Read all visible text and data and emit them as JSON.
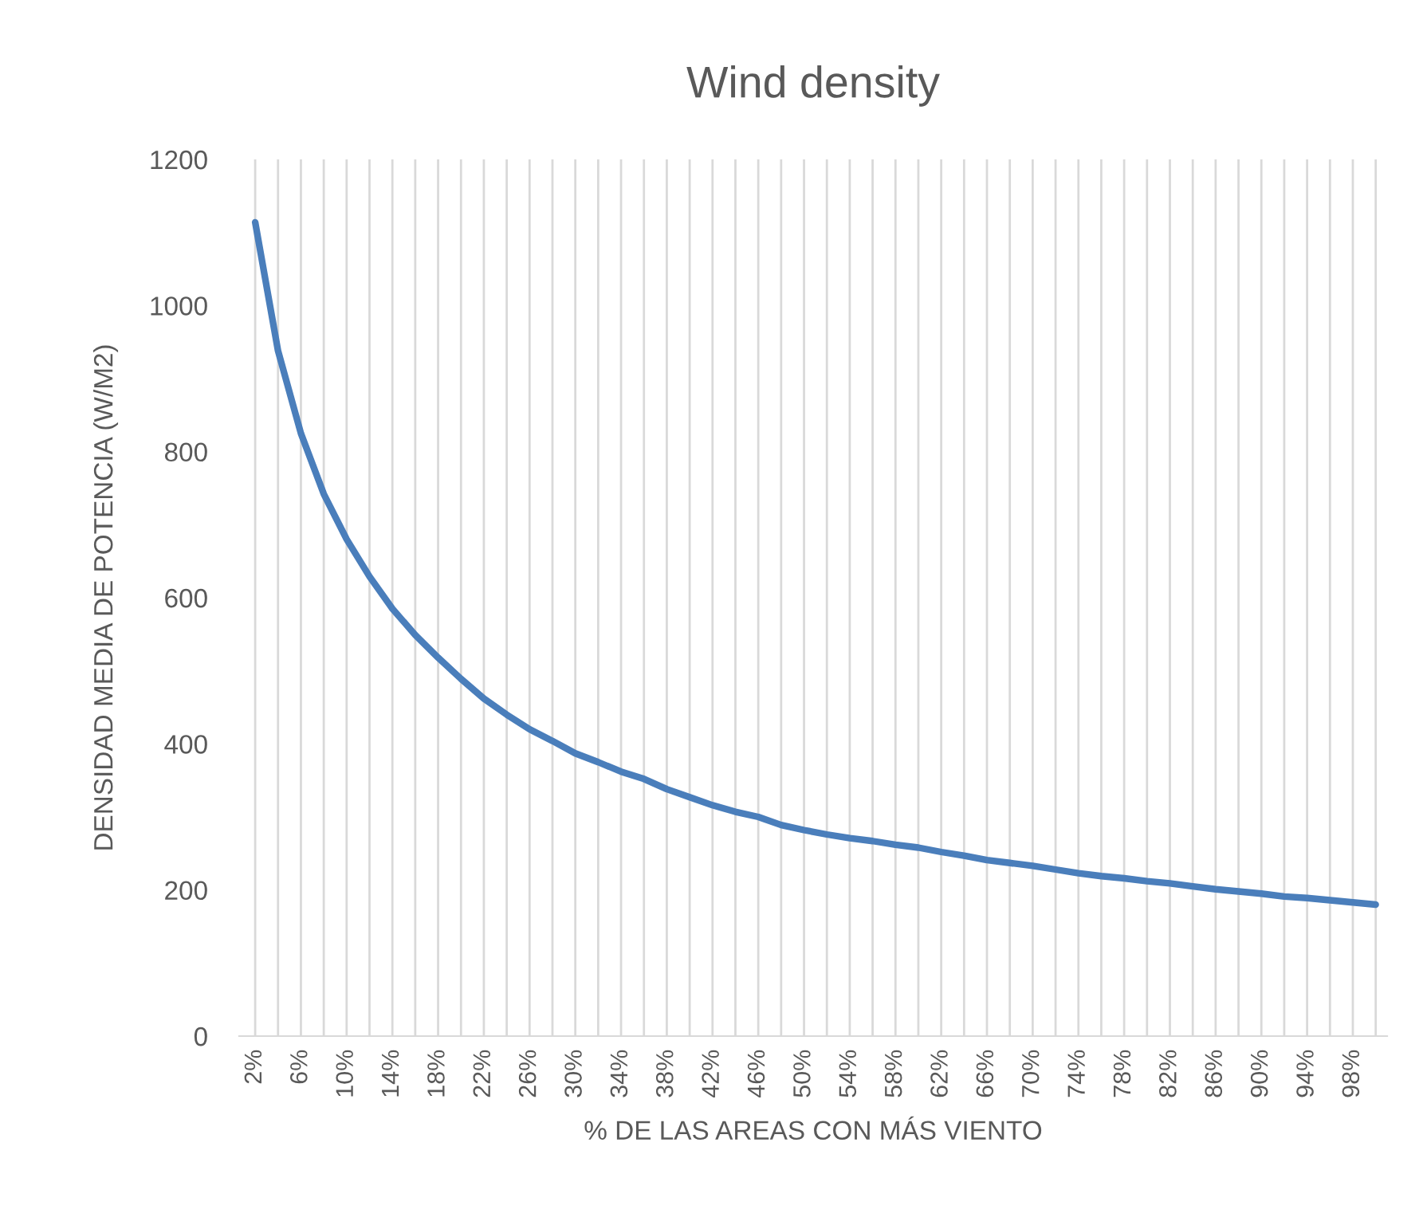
{
  "chart_data": {
    "type": "line",
    "title": "Wind density",
    "xlabel": "% DE LAS AREAS CON MÁS VIENTO",
    "ylabel": "DENSIDAD MEDIA DE POTENCIA (W/M2)",
    "categories": [
      "2%",
      null,
      "6%",
      null,
      "10%",
      null,
      "14%",
      null,
      "18%",
      null,
      "22%",
      null,
      "26%",
      null,
      "30%",
      null,
      "34%",
      null,
      "38%",
      null,
      "42%",
      null,
      "46%",
      null,
      "50%",
      null,
      "54%",
      null,
      "58%",
      null,
      "62%",
      null,
      "66%",
      null,
      "70%",
      null,
      "74%",
      null,
      "78%",
      null,
      "82%",
      null,
      "86%",
      null,
      "90%",
      null,
      "94%",
      null,
      "98%",
      null
    ],
    "series": [
      {
        "color": "#4a7ebb",
        "values": [
          1114,
          938,
          825,
          742,
          680,
          629,
          585,
          549,
          518,
          489,
          462,
          440,
          420,
          404,
          387,
          375,
          362,
          352,
          338,
          327,
          316,
          307,
          300,
          289,
          282,
          276,
          271,
          267,
          262,
          258,
          252,
          247,
          241,
          237,
          233,
          228,
          223,
          219,
          216,
          212,
          209,
          205,
          201,
          198,
          195,
          191,
          189,
          186,
          183,
          180
        ]
      }
    ],
    "ylim": [
      0,
      1200
    ],
    "yticks": [
      0,
      200,
      400,
      600,
      800,
      1000,
      1200
    ],
    "grid": "x",
    "marker": "none",
    "line_style": "solid"
  }
}
